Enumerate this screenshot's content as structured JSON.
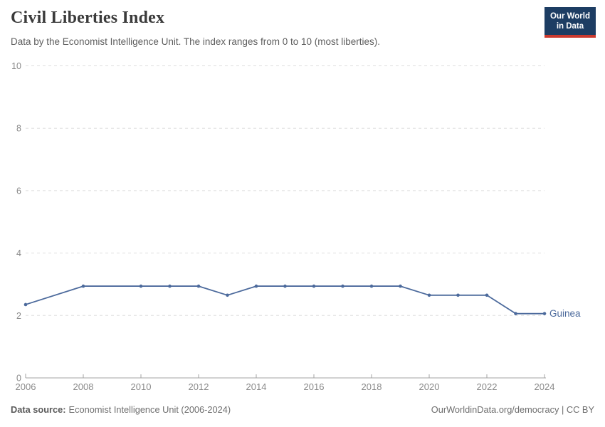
{
  "header": {
    "title": "Civil Liberties Index",
    "subtitle": "Data by the Economist Intelligence Unit. The index ranges from 0 to 10 (most liberties).",
    "logo_line1": "Our World",
    "logo_line2": "in Data"
  },
  "footer": {
    "source_label": "Data source:",
    "source_text": "Economist Intelligence Unit (2006-2024)",
    "link_text": "OurWorldinData.org/democracy | CC BY"
  },
  "colors": {
    "series_blue": "#4C6A9C",
    "grid": "#dedede",
    "axis": "#a3a3a3",
    "tick_label": "#8a8a8a",
    "title": "#3b3b3b",
    "subtitle": "#5e5e5e",
    "footer_text": "#6e6e6e",
    "logo_bg": "#1d3d63",
    "logo_red": "#cb3a2f"
  },
  "chart_data": {
    "type": "line",
    "title": "Civil Liberties Index",
    "xlabel": "",
    "ylabel": "",
    "xlim": [
      2006,
      2024
    ],
    "ylim": [
      0,
      10
    ],
    "xticks": [
      2006,
      2008,
      2010,
      2012,
      2014,
      2016,
      2018,
      2020,
      2022,
      2024
    ],
    "yticks": [
      0,
      2,
      4,
      6,
      8,
      10
    ],
    "grid": "horizontal-dashed",
    "legend_position": "end-of-line-label",
    "series": [
      {
        "name": "Guinea",
        "color": "#4C6A9C",
        "points": [
          [
            2006,
            2.35
          ],
          [
            2008,
            2.94
          ],
          [
            2010,
            2.94
          ],
          [
            2011,
            2.94
          ],
          [
            2012,
            2.94
          ],
          [
            2013,
            2.65
          ],
          [
            2014,
            2.94
          ],
          [
            2015,
            2.94
          ],
          [
            2016,
            2.94
          ],
          [
            2017,
            2.94
          ],
          [
            2018,
            2.94
          ],
          [
            2019,
            2.94
          ],
          [
            2020,
            2.65
          ],
          [
            2021,
            2.65
          ],
          [
            2022,
            2.65
          ],
          [
            2023,
            2.06
          ],
          [
            2024,
            2.06
          ]
        ]
      }
    ]
  }
}
